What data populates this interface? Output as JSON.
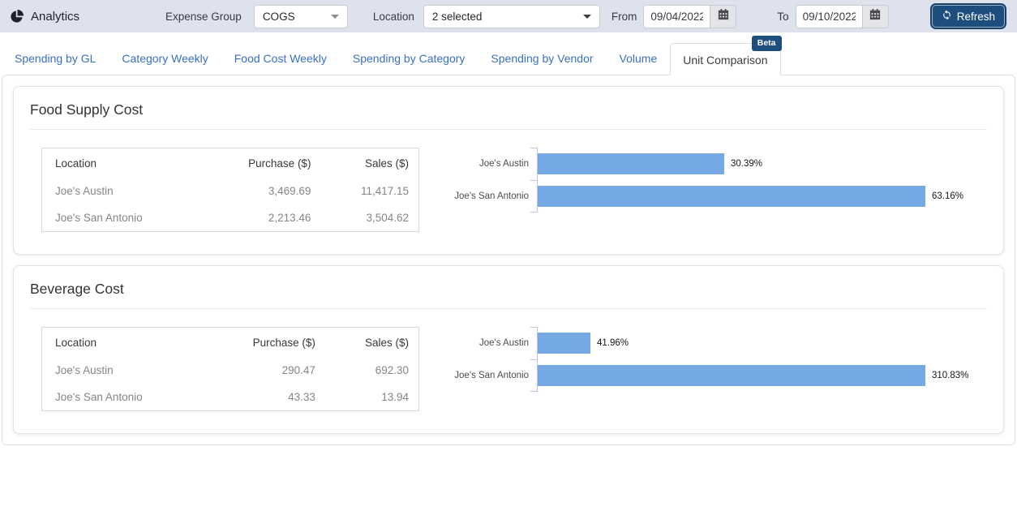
{
  "app": {
    "title": "Analytics"
  },
  "colors": {
    "topbar_bg": "#dde2ed",
    "navy": "#1d4e7e",
    "tab_blue": "#3a70c4",
    "bar_blue": "#74a9e4",
    "axis_blue": "#b9c6e2"
  },
  "icons": {
    "brand": "pie-chart-icon",
    "dropdown": "caret-down-icon",
    "date": "calendar-icon",
    "refresh": "refresh-icon"
  },
  "toolbar": {
    "expense_group_label": "Expense Group",
    "expense_group_value": "COGS",
    "location_label": "Location",
    "location_value": "2 selected",
    "from_label": "From",
    "from_value": "09/04/2022",
    "to_label": "To",
    "to_value": "09/10/2022",
    "refresh_label": "Refresh"
  },
  "tabs": [
    {
      "label": "Spending by GL",
      "active": false
    },
    {
      "label": "Category Weekly",
      "active": false
    },
    {
      "label": "Food Cost Weekly",
      "active": false
    },
    {
      "label": "Spending by Category",
      "active": false
    },
    {
      "label": "Spending by Vendor",
      "active": false
    },
    {
      "label": "Volume",
      "active": false
    },
    {
      "label": "Unit Comparison",
      "active": true,
      "badge": "Beta"
    }
  ],
  "cards": [
    {
      "title": "Food Supply Cost",
      "table": {
        "headers": [
          "Location",
          "Purchase ($)",
          "Sales ($)"
        ],
        "rows": [
          [
            "Joe's Austin",
            "3,469.69",
            "11,417.15"
          ],
          [
            "Joe's San Antonio",
            "2,213.46",
            "3,504.62"
          ]
        ]
      }
    },
    {
      "title": "Beverage Cost",
      "table": {
        "headers": [
          "Location",
          "Purchase ($)",
          "Sales ($)"
        ],
        "rows": [
          [
            "Joe's Austin",
            "290.47",
            "692.30"
          ],
          [
            "Joe's San Antonio",
            "43.33",
            "13.94"
          ]
        ]
      }
    }
  ],
  "chart_data": [
    {
      "type": "bar",
      "orientation": "horizontal",
      "title": "Food Supply Cost",
      "categories": [
        "Joe's Austin",
        "Joe's San Antonio"
      ],
      "values": [
        30.39,
        63.16
      ],
      "value_labels": [
        "30.39%",
        "63.16%"
      ],
      "unit": "%",
      "xlabel": "",
      "ylabel": "",
      "grid": false,
      "legend": false,
      "bar_color": "#74a9e4"
    },
    {
      "type": "bar",
      "orientation": "horizontal",
      "title": "Beverage Cost",
      "categories": [
        "Joe's Austin",
        "Joe's San Antonio"
      ],
      "values": [
        41.96,
        310.83
      ],
      "value_labels": [
        "41.96%",
        "310.83%"
      ],
      "unit": "%",
      "xlabel": "",
      "ylabel": "",
      "grid": false,
      "legend": false,
      "bar_color": "#74a9e4"
    }
  ]
}
